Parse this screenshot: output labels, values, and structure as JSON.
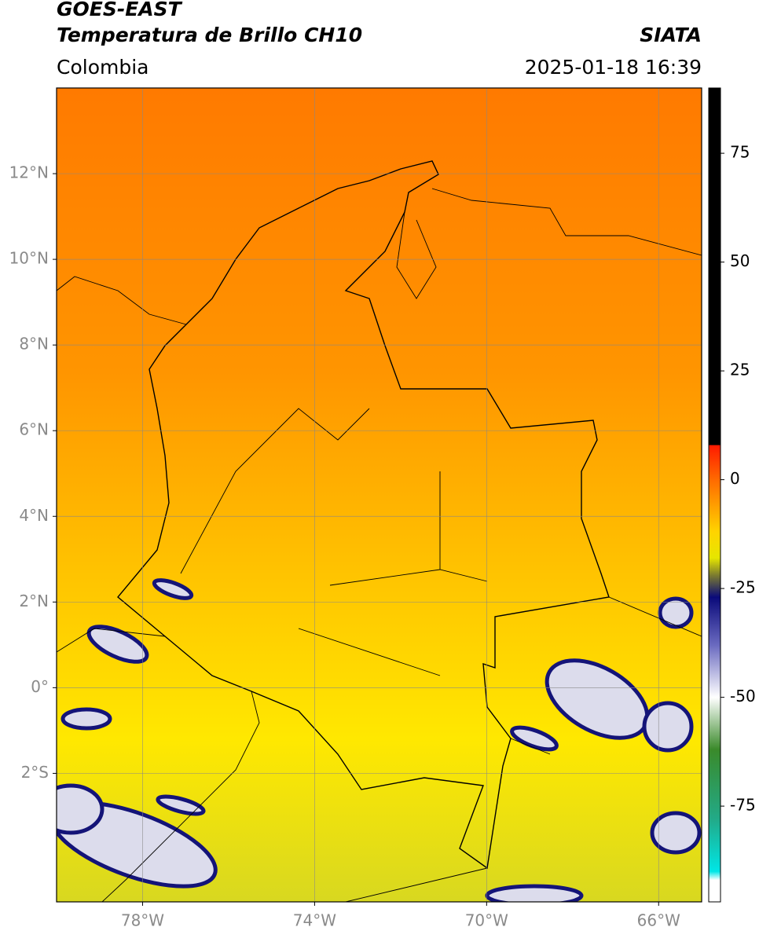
{
  "header": {
    "title": "GOES-EAST",
    "subtitle": "Temperatura de Brillo CH10",
    "source": "SIATA",
    "region": "Colombia",
    "timestamp": "2025-01-18 16:39"
  },
  "map": {
    "lonlim": [
      -80,
      -65
    ],
    "latlim": [
      -5,
      14
    ],
    "lon_ticks": [
      {
        "value": -78,
        "label": "78°W"
      },
      {
        "value": -74,
        "label": "74°W"
      },
      {
        "value": -70,
        "label": "70°W"
      },
      {
        "value": -66,
        "label": "66°W"
      }
    ],
    "lat_ticks": [
      {
        "value": 12,
        "label": "12°N"
      },
      {
        "value": 10,
        "label": "10°N"
      },
      {
        "value": 8,
        "label": "8°N"
      },
      {
        "value": 6,
        "label": "6°N"
      },
      {
        "value": 4,
        "label": "4°N"
      },
      {
        "value": 2,
        "label": "2°N"
      },
      {
        "value": 0,
        "label": "0°"
      },
      {
        "value": -2,
        "label": "2°S"
      }
    ]
  },
  "colorbar": {
    "lim": [
      -97,
      90
    ],
    "ticks": [
      75,
      50,
      25,
      0,
      -25,
      -50,
      -75
    ],
    "stops": [
      {
        "value": 90,
        "color": "#000000"
      },
      {
        "value": 8,
        "color": "#000000"
      },
      {
        "value": 7.9,
        "color": "#ff1a00"
      },
      {
        "value": 0,
        "color": "#ff6a00"
      },
      {
        "value": -12,
        "color": "#ffd400"
      },
      {
        "value": -18,
        "color": "#e6e600"
      },
      {
        "value": -22,
        "color": "#7a7a30"
      },
      {
        "value": -27,
        "color": "#0a0a7a"
      },
      {
        "value": -38,
        "color": "#6a6ac0"
      },
      {
        "value": -50,
        "color": "#ffffff"
      },
      {
        "value": -62,
        "color": "#3a8a2a"
      },
      {
        "value": -78,
        "color": "#22aa88"
      },
      {
        "value": -90,
        "color": "#00e6e6"
      },
      {
        "value": -92,
        "color": "#ffffff"
      },
      {
        "value": -97,
        "color": "#ffffff"
      }
    ]
  }
}
